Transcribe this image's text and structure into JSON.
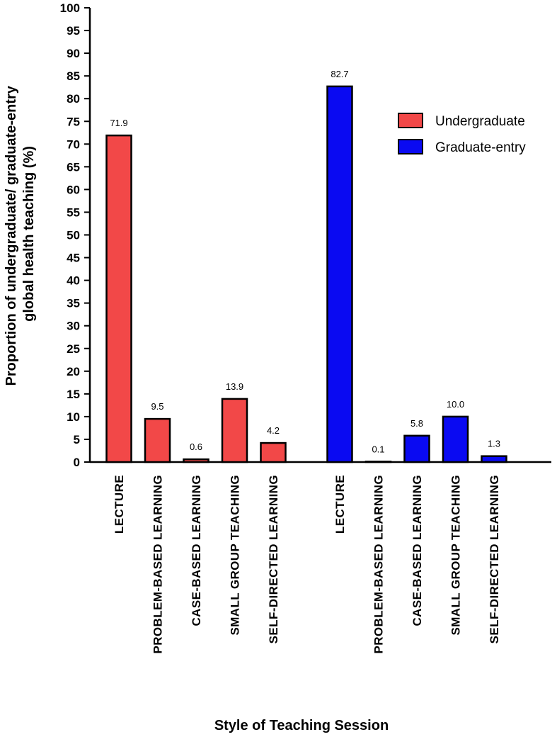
{
  "chart_data": {
    "type": "bar",
    "xlabel": "Style of Teaching Session",
    "ylabel_lines": [
      "Proportion of undergraduate/ graduate-entry",
      "global health teaching (%)"
    ],
    "ylim": [
      0,
      100
    ],
    "yticks": [
      0,
      5,
      10,
      15,
      20,
      25,
      30,
      35,
      40,
      45,
      50,
      55,
      60,
      65,
      70,
      75,
      80,
      85,
      90,
      95,
      100
    ],
    "legend_position": "right",
    "grid": false,
    "groups": [
      {
        "name": "Undergraduate",
        "color": "#f24848",
        "categories": [
          "LECTURE",
          "PROBLEM-BASED LEARNING",
          "CASE-BASED LEARNING",
          "SMALL GROUP TEACHING",
          "SELF-DIRECTED LEARNING"
        ],
        "values": [
          71.9,
          9.5,
          0.6,
          13.9,
          4.2
        ],
        "labels": [
          "71.9",
          "9.5",
          "0.6",
          "13.9",
          "4.2"
        ]
      },
      {
        "name": "Graduate-entry",
        "color": "#0a0af2",
        "categories": [
          "LECTURE",
          "PROBLEM-BASED LEARNING",
          "CASE-BASED LEARNING",
          "SMALL GROUP TEACHING",
          "SELF-DIRECTED LEARNING"
        ],
        "values": [
          82.7,
          0.1,
          5.8,
          10.0,
          1.3
        ],
        "labels": [
          "82.7",
          "0.1",
          "5.8",
          "10.0",
          "1.3"
        ]
      }
    ]
  }
}
